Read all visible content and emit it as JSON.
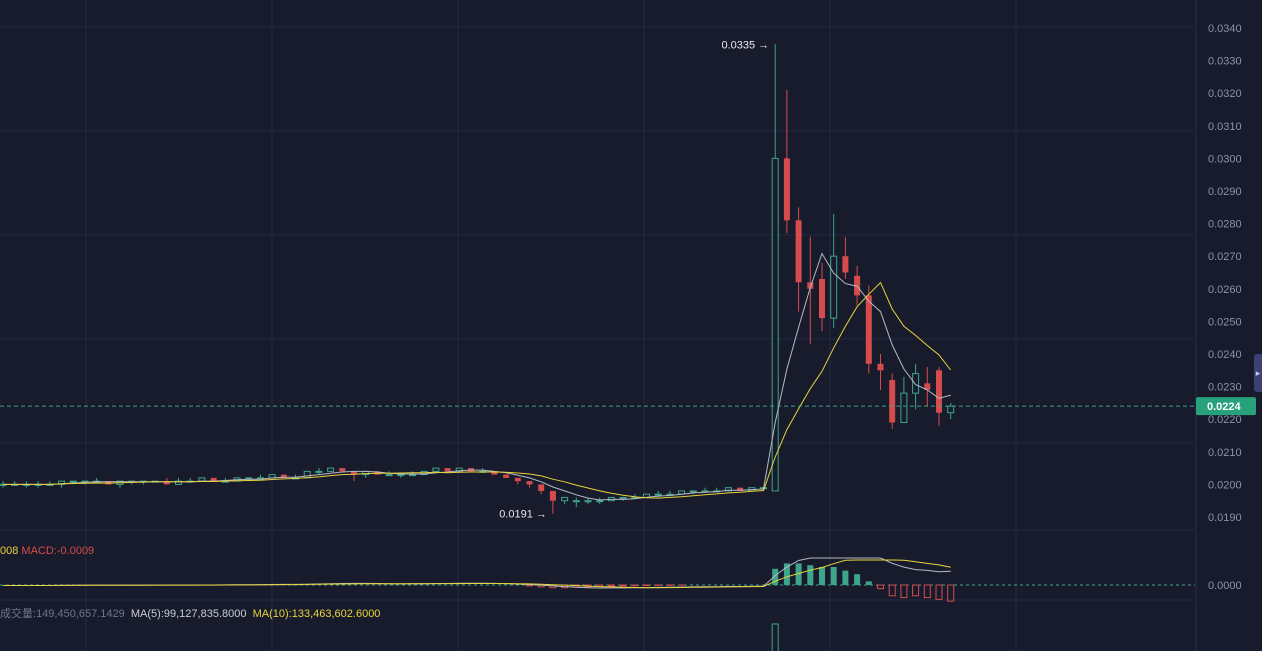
{
  "chart_data": [
    {
      "type": "candlestick",
      "y_axis": {
        "ticks": [
          "0.0340",
          "0.0330",
          "0.0320",
          "0.0310",
          "0.0300",
          "0.0290",
          "0.0280",
          "0.0270",
          "0.0260",
          "0.0250",
          "0.0240",
          "0.0230",
          "0.0220",
          "0.0210",
          "0.0200",
          "0.0190"
        ],
        "range": [
          0.0185,
          0.0342
        ],
        "grid": true,
        "position": "right"
      },
      "current_price": {
        "value": 0.0224,
        "label": "0.0224"
      },
      "annotations": [
        {
          "text": "0.0335",
          "price": 0.0335,
          "bar": 66,
          "arrow": "→"
        },
        {
          "text": "0.0191",
          "price": 0.0191,
          "bar": 47,
          "arrow": "→"
        }
      ],
      "candles": [
        [
          0.02,
          0.0201,
          0.0199,
          0.02
        ],
        [
          0.02,
          0.0201,
          0.02,
          0.02
        ],
        [
          0.02,
          0.0201,
          0.0199,
          0.02
        ],
        [
          0.02,
          0.0201,
          0.0199,
          0.02
        ],
        [
          0.02,
          0.0201,
          0.02,
          0.02
        ],
        [
          0.02,
          0.0201,
          0.0199,
          0.0201
        ],
        [
          0.0201,
          0.0201,
          0.02,
          0.0201
        ],
        [
          0.0201,
          0.0201,
          0.02,
          0.0201
        ],
        [
          0.0201,
          0.0202,
          0.0201,
          0.0201
        ],
        [
          0.0201,
          0.0201,
          0.02,
          0.02
        ],
        [
          0.02,
          0.0201,
          0.0199,
          0.0201
        ],
        [
          0.0201,
          0.0201,
          0.02,
          0.0201
        ],
        [
          0.0201,
          0.0201,
          0.02,
          0.0201
        ],
        [
          0.0201,
          0.0201,
          0.0201,
          0.0201
        ],
        [
          0.0201,
          0.0202,
          0.02,
          0.02
        ],
        [
          0.02,
          0.0202,
          0.02,
          0.0201
        ],
        [
          0.0201,
          0.0202,
          0.0201,
          0.0201
        ],
        [
          0.0201,
          0.0202,
          0.0201,
          0.0202
        ],
        [
          0.0202,
          0.0202,
          0.0201,
          0.0201
        ],
        [
          0.0201,
          0.0202,
          0.0201,
          0.0201
        ],
        [
          0.0201,
          0.0202,
          0.0201,
          0.0202
        ],
        [
          0.0202,
          0.0202,
          0.0201,
          0.0202
        ],
        [
          0.0202,
          0.0203,
          0.0202,
          0.0202
        ],
        [
          0.0202,
          0.0203,
          0.0202,
          0.0203
        ],
        [
          0.0203,
          0.0203,
          0.0202,
          0.0202
        ],
        [
          0.0202,
          0.0203,
          0.0202,
          0.0202
        ],
        [
          0.0202,
          0.0204,
          0.0202,
          0.0204
        ],
        [
          0.0204,
          0.0205,
          0.0203,
          0.0204
        ],
        [
          0.0204,
          0.0205,
          0.0204,
          0.0205
        ],
        [
          0.0205,
          0.0205,
          0.0204,
          0.0204
        ],
        [
          0.0204,
          0.0204,
          0.0201,
          0.0203
        ],
        [
          0.0203,
          0.0204,
          0.0202,
          0.0204
        ],
        [
          0.0204,
          0.0204,
          0.0203,
          0.0203
        ],
        [
          0.0203,
          0.0204,
          0.0203,
          0.0203
        ],
        [
          0.0203,
          0.0203,
          0.0202,
          0.0203
        ],
        [
          0.0203,
          0.0204,
          0.0203,
          0.0203
        ],
        [
          0.0203,
          0.0204,
          0.0203,
          0.0204
        ],
        [
          0.0204,
          0.0205,
          0.0204,
          0.0205
        ],
        [
          0.0205,
          0.0205,
          0.0204,
          0.0204
        ],
        [
          0.0204,
          0.0205,
          0.0204,
          0.0205
        ],
        [
          0.0205,
          0.0205,
          0.0204,
          0.0204
        ],
        [
          0.0204,
          0.0205,
          0.0204,
          0.0204
        ],
        [
          0.0204,
          0.0204,
          0.0203,
          0.0203
        ],
        [
          0.0203,
          0.0203,
          0.0202,
          0.0202
        ],
        [
          0.0202,
          0.0202,
          0.02,
          0.0201
        ],
        [
          0.0201,
          0.0201,
          0.0199,
          0.02
        ],
        [
          0.02,
          0.02,
          0.0197,
          0.0198
        ],
        [
          0.0198,
          0.0198,
          0.0191,
          0.0195
        ],
        [
          0.0195,
          0.0196,
          0.0194,
          0.0196
        ],
        [
          0.0195,
          0.0196,
          0.0193,
          0.0195
        ],
        [
          0.0195,
          0.0196,
          0.0194,
          0.0195
        ],
        [
          0.0195,
          0.0196,
          0.0194,
          0.0195
        ],
        [
          0.0195,
          0.0196,
          0.0195,
          0.0196
        ],
        [
          0.0196,
          0.0196,
          0.0195,
          0.0196
        ],
        [
          0.0196,
          0.0197,
          0.0196,
          0.0196
        ],
        [
          0.0196,
          0.0197,
          0.0196,
          0.0197
        ],
        [
          0.0197,
          0.0198,
          0.0196,
          0.0197
        ],
        [
          0.0197,
          0.0198,
          0.0197,
          0.0197
        ],
        [
          0.0197,
          0.0198,
          0.0197,
          0.0198
        ],
        [
          0.0198,
          0.0198,
          0.0197,
          0.0198
        ],
        [
          0.0198,
          0.0199,
          0.0198,
          0.0198
        ],
        [
          0.0198,
          0.0199,
          0.0198,
          0.0198
        ],
        [
          0.0198,
          0.0199,
          0.0198,
          0.0199
        ],
        [
          0.0199,
          0.0199,
          0.0198,
          0.0198
        ],
        [
          0.0198,
          0.0199,
          0.0198,
          0.0199
        ],
        [
          0.0199,
          0.0199,
          0.0198,
          0.0199
        ],
        [
          0.0198,
          0.0335,
          0.0198,
          0.03
        ],
        [
          0.03,
          0.0321,
          0.0277,
          0.0281
        ],
        [
          0.0281,
          0.0285,
          0.0253,
          0.0262
        ],
        [
          0.0262,
          0.0276,
          0.0243,
          0.026
        ],
        [
          0.0263,
          0.0268,
          0.0247,
          0.0251
        ],
        [
          0.0251,
          0.0283,
          0.0248,
          0.027
        ],
        [
          0.027,
          0.0276,
          0.0263,
          0.0265
        ],
        [
          0.0264,
          0.0267,
          0.0255,
          0.0258
        ],
        [
          0.0258,
          0.0261,
          0.0234,
          0.0237
        ],
        [
          0.0237,
          0.024,
          0.0229,
          0.0235
        ],
        [
          0.0232,
          0.0234,
          0.0217,
          0.0219
        ],
        [
          0.0219,
          0.0233,
          0.0219,
          0.0228
        ],
        [
          0.0228,
          0.0237,
          0.0223,
          0.0234
        ],
        [
          0.0231,
          0.0236,
          0.0224,
          0.0229
        ],
        [
          0.0235,
          0.0236,
          0.0218,
          0.0222
        ],
        [
          0.0222,
          0.0225,
          0.022,
          0.0224
        ]
      ],
      "series": [
        {
          "name": "MA(5)",
          "color": "#b7bac6"
        },
        {
          "name": "MA(10)",
          "color": "#e9d43a"
        }
      ],
      "colors": {
        "up": "#3fa58a",
        "down": "#d64c4c"
      }
    },
    {
      "type": "bar",
      "indicator": "MACD",
      "y_axis": {
        "ticks": [
          "0.0000"
        ],
        "zero_label": "0.0000"
      },
      "histogram": [
        0,
        0,
        0,
        0,
        0,
        0,
        0,
        0,
        0,
        0,
        0,
        0,
        0,
        0,
        0,
        0,
        0,
        0,
        0,
        0,
        0,
        0,
        0,
        0,
        0,
        0,
        0,
        0,
        0,
        0,
        0,
        0,
        0,
        0,
        0,
        0,
        0,
        0,
        0,
        0,
        0,
        0,
        0,
        0,
        0,
        -5e-05,
        -0.0001,
        -0.00015,
        -0.00015,
        -0.00012,
        -0.0001,
        -8e-05,
        -6e-05,
        -5e-05,
        -4e-05,
        -3e-05,
        -2e-05,
        -2e-05,
        -1e-05,
        0,
        0,
        0,
        0,
        0,
        0,
        0,
        0.0009,
        0.0012,
        0.0012,
        0.0011,
        0.001,
        0.001,
        0.0008,
        0.0006,
        0.0002,
        -0.0002,
        -0.0006,
        -0.0007,
        -0.0006,
        -0.0007,
        -0.0008,
        -0.0009
      ]
    },
    {
      "type": "bar",
      "indicator": "volume",
      "visible_bars": [
        {
          "bar": 66,
          "color": "#3fa58a"
        }
      ]
    }
  ],
  "macd_legend": {
    "prefix": "008",
    "label": "MACD:-0.0009"
  },
  "volume_legend": {
    "label": "成交量:",
    "value": "149,450,657.1429",
    "ma5": "MA(5):99,127,835.8000",
    "ma10": "MA(10):133,463,602.6000"
  },
  "side_handle": {
    "icon": "chevron-right-icon",
    "glyph": "▸"
  }
}
